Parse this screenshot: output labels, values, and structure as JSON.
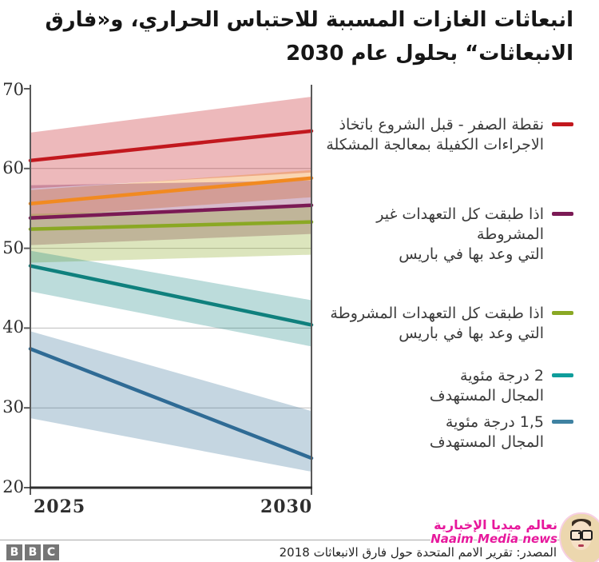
{
  "title": {
    "line1": "انبعاثات الغازات المسببة للاحتباس الحراري، و«فارق",
    "line2": "الانبعاثات“ بحلول عام 2030"
  },
  "chart_data": {
    "type": "line",
    "title": "انبعاثات الغازات المسببة للاحتباس الحراري، و«فارق الانبعاثات“ بحلول عام 2030",
    "x": [
      2025,
      2030
    ],
    "x_labels": [
      "2025",
      "2030"
    ],
    "ylim": [
      20,
      70
    ],
    "yticks": [
      70,
      60,
      50,
      40,
      30,
      20
    ],
    "ytick_labels": [
      "70",
      "60",
      "50",
      "40",
      "30",
      "20"
    ],
    "grid_values": [
      60,
      50,
      40,
      30
    ],
    "grid": true,
    "legend_position": "right",
    "series": [
      {
        "name": "baseline-no-action",
        "color": "#c2181e",
        "band_opacity": 0.3,
        "values": [
          61,
          64.7
        ],
        "band_low": [
          57.5,
          59.5
        ],
        "band_high": [
          64.5,
          69.0
        ]
      },
      {
        "name": "orange-unlabeled",
        "color": "#f18a21",
        "band_opacity": 0.35,
        "values": [
          55.6,
          58.8
        ],
        "band_low": [
          53.9,
          56.4
        ],
        "band_high": [
          57.3,
          59.8
        ]
      },
      {
        "name": "unconditional-pledges",
        "color": "#7b1a55",
        "band_opacity": 0.3,
        "values": [
          53.8,
          55.4
        ],
        "band_low": [
          50.4,
          51.8
        ],
        "band_high": [
          57.9,
          58.5
        ]
      },
      {
        "name": "conditional-pledges",
        "color": "#8aa824",
        "band_opacity": 0.3,
        "values": [
          52.4,
          53.3
        ],
        "band_low": [
          48.2,
          49.2
        ],
        "band_high": [
          54.3,
          55.2
        ]
      },
      {
        "name": "two-degrees-range",
        "color": "#0f807d",
        "band_opacity": 0.28,
        "values": [
          47.8,
          40.4
        ],
        "band_low": [
          44.6,
          37.7
        ],
        "band_high": [
          49.7,
          43.5
        ]
      },
      {
        "name": "one-point-five-degrees-range",
        "color": "#2f6b95",
        "band_opacity": 0.28,
        "values": [
          37.4,
          23.7
        ],
        "band_low": [
          28.7,
          22.0
        ],
        "band_high": [
          39.6,
          29.6
        ]
      }
    ]
  },
  "legend": {
    "items": [
      {
        "color": "#c2181e",
        "text": "نقطة الصفر - قبل الشروع باتخاذ\nالاجراءات الكفيلة بمعالجة المشكلة"
      },
      {
        "color": "#7b1a55",
        "text": "اذا طبقت كل التعهدات غير\nالمشروطة\nالتي وعد بها في باريس"
      },
      {
        "color": "#8aa824",
        "text": "اذا طبقت كل التعهدات المشروطة\nالتي وعد بها في باريس"
      },
      {
        "color": "#0f9d9b",
        "text": "2 درجة مئوية\nالمجال المستهدف"
      },
      {
        "color": "#3f82a2",
        "text": "1,5 درجة مئوية\nالمجال المستهدف"
      }
    ]
  },
  "footer": {
    "source": "المصدر: تقرير الامم المتحدة حول فارق الانبعاثات 2018",
    "bbc_letters": [
      "B",
      "B",
      "C"
    ]
  },
  "watermark": {
    "arabic": "نعالم ميديا الإخبارية",
    "latin": "Naaim Media news"
  },
  "colors": {
    "grid": "#bdbdbd",
    "axis": "#5a5a5a",
    "bottom_axis": "#2f2f2f",
    "watermark_magenta": "#e7189c"
  }
}
